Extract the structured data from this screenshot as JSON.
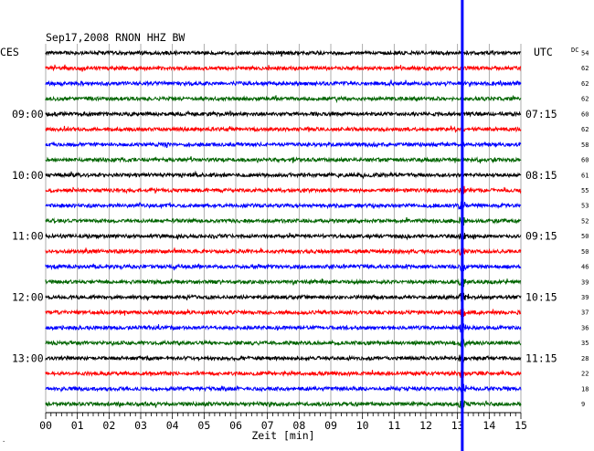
{
  "chart_data": {
    "type": "line",
    "header": "Sep17,2008   RNON HHZ BW",
    "left_timezone": "CES",
    "right_timezone": "UTC",
    "dc_label": "DC",
    "xlabel": "Zeit [min]",
    "xlim": [
      0,
      15
    ],
    "x_ticks": [
      "00",
      "01",
      "02",
      "03",
      "04",
      "05",
      "06",
      "07",
      "08",
      "09",
      "10",
      "11",
      "12",
      "13",
      "14",
      "15"
    ],
    "trace_colors": [
      "#000000",
      "#ff0000",
      "#0000ff",
      "#006400"
    ],
    "left_hour_labels": [
      {
        "trace": 4,
        "label": "09:00"
      },
      {
        "trace": 8,
        "label": "10:00"
      },
      {
        "trace": 12,
        "label": "11:00"
      },
      {
        "trace": 16,
        "label": "12:00"
      },
      {
        "trace": 20,
        "label": "13:00"
      }
    ],
    "right_hour_labels": [
      {
        "trace": 4,
        "label": "07:15"
      },
      {
        "trace": 8,
        "label": "08:15"
      },
      {
        "trace": 12,
        "label": "09:15"
      },
      {
        "trace": 16,
        "label": "10:15"
      },
      {
        "trace": 20,
        "label": "11:15"
      }
    ],
    "dc_values": [
      "54",
      "62",
      "62",
      "62",
      "60",
      "62",
      "58",
      "60",
      "61",
      "55",
      "53",
      "52",
      "50",
      "50",
      "46",
      "39",
      "39",
      "37",
      "36",
      "35",
      "28",
      "22",
      "18",
      "9"
    ],
    "event_marker_minute": 13.15,
    "bottom_left_mark": "."
  }
}
